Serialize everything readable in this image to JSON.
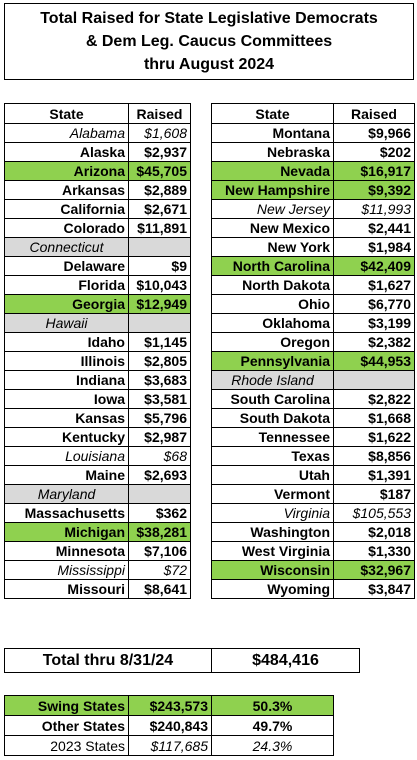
{
  "header": {
    "title": [
      "Total Raised for State Legislative Democrats",
      "& Dem Leg. Caucus Committees",
      "thru August 2024"
    ]
  },
  "tables": [
    {
      "columns": [
        "State",
        "Raised"
      ],
      "rows": [
        {
          "state": "Alabama",
          "raised": "$1,608",
          "style": "italic"
        },
        {
          "state": "Alaska",
          "raised": "$2,937"
        },
        {
          "state": "Arizona",
          "raised": "$45,705",
          "style": "green"
        },
        {
          "state": "Arkansas",
          "raised": "$2,889"
        },
        {
          "state": "California",
          "raised": "$2,671"
        },
        {
          "state": "Colorado",
          "raised": "$11,891"
        },
        {
          "state": "Connecticut",
          "style": "gray"
        },
        {
          "state": "Delaware",
          "raised": "$9"
        },
        {
          "state": "Florida",
          "raised": "$10,043"
        },
        {
          "state": "Georgia",
          "raised": "$12,949",
          "style": "green"
        },
        {
          "state": "Hawaii",
          "style": "gray"
        },
        {
          "state": "Idaho",
          "raised": "$1,145"
        },
        {
          "state": "Illinois",
          "raised": "$2,805"
        },
        {
          "state": "Indiana",
          "raised": "$3,683"
        },
        {
          "state": "Iowa",
          "raised": "$3,581"
        },
        {
          "state": "Kansas",
          "raised": "$5,796"
        },
        {
          "state": "Kentucky",
          "raised": "$2,987"
        },
        {
          "state": "Louisiana",
          "raised": "$68",
          "style": "italic"
        },
        {
          "state": "Maine",
          "raised": "$2,693"
        },
        {
          "state": "Maryland",
          "style": "gray"
        },
        {
          "state": "Massachusetts",
          "raised": "$362"
        },
        {
          "state": "Michigan",
          "raised": "$38,281",
          "style": "green"
        },
        {
          "state": "Minnesota",
          "raised": "$7,106"
        },
        {
          "state": "Mississippi",
          "raised": "$72",
          "style": "italic"
        },
        {
          "state": "Missouri",
          "raised": "$8,641"
        }
      ]
    },
    {
      "columns": [
        "State",
        "Raised"
      ],
      "rows": [
        {
          "state": "Montana",
          "raised": "$9,966"
        },
        {
          "state": "Nebraska",
          "raised": "$202"
        },
        {
          "state": "Nevada",
          "raised": "$16,917",
          "style": "green"
        },
        {
          "state": "New Hampshire",
          "raised": "$9,392",
          "style": "green"
        },
        {
          "state": "New Jersey",
          "raised": "$11,993",
          "style": "italic"
        },
        {
          "state": "New Mexico",
          "raised": "$2,441"
        },
        {
          "state": "New York",
          "raised": "$1,984"
        },
        {
          "state": "North Carolina",
          "raised": "$42,409",
          "style": "green"
        },
        {
          "state": "North Dakota",
          "raised": "$1,627"
        },
        {
          "state": "Ohio",
          "raised": "$6,770"
        },
        {
          "state": "Oklahoma",
          "raised": "$3,199"
        },
        {
          "state": "Oregon",
          "raised": "$2,382"
        },
        {
          "state": "Pennsylvania",
          "raised": "$44,953",
          "style": "green"
        },
        {
          "state": "Rhode Island",
          "style": "gray"
        },
        {
          "state": "South Carolina",
          "raised": "$2,822"
        },
        {
          "state": "South Dakota",
          "raised": "$1,668"
        },
        {
          "state": "Tennessee",
          "raised": "$1,622"
        },
        {
          "state": "Texas",
          "raised": "$8,856"
        },
        {
          "state": "Utah",
          "raised": "$1,391"
        },
        {
          "state": "Vermont",
          "raised": "$187"
        },
        {
          "state": "Virginia",
          "raised": "$105,553",
          "style": "italic"
        },
        {
          "state": "Washington",
          "raised": "$2,018"
        },
        {
          "state": "West Virginia",
          "raised": "$1,330"
        },
        {
          "state": "Wisconsin",
          "raised": "$32,967",
          "style": "green"
        },
        {
          "state": "Wyoming",
          "raised": "$3,847"
        }
      ]
    }
  ],
  "total": {
    "label": "Total thru 8/31/24",
    "value": "$484,416"
  },
  "summary": [
    {
      "label": "Swing States",
      "value": "$243,573",
      "share": "50.3%",
      "style": "green"
    },
    {
      "label": "Other States",
      "value": "$240,843",
      "share": "49.7%"
    },
    {
      "label": "2023 States",
      "value": "$117,685",
      "share": "24.3%",
      "style": "italic"
    }
  ]
}
